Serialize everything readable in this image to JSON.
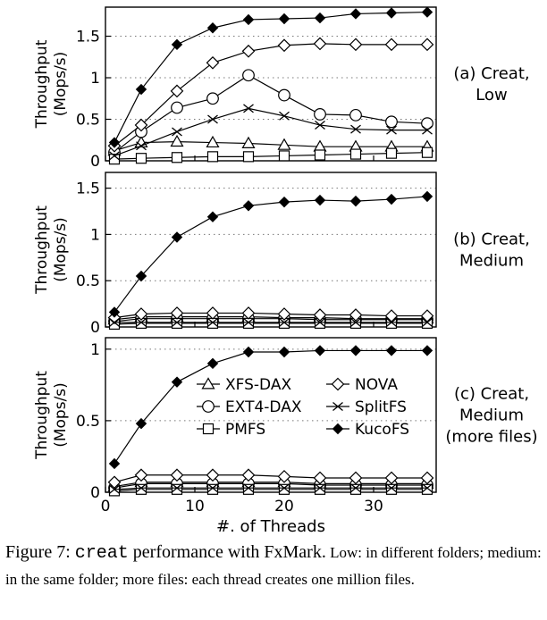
{
  "chart_data": [
    {
      "type": "line",
      "label": "(a) Creat,\nLow",
      "ylabel": "Throughput\n(Mops/s)",
      "xlabel": "",
      "xlim": [
        0,
        37
      ],
      "ylim": [
        0,
        1.85
      ],
      "xticks": [
        0,
        10,
        20,
        30
      ],
      "xtick_labels": [
        "",
        "",
        "",
        ""
      ],
      "yticks": [
        0,
        0.5,
        1,
        1.5
      ],
      "ytick_labels": [
        "0",
        "0.5",
        "1",
        "1.5"
      ],
      "grid": "horizontal-dotted",
      "x": [
        1,
        4,
        8,
        12,
        16,
        20,
        24,
        28,
        32,
        36
      ],
      "series": [
        {
          "name": "XFS-DAX",
          "marker": "triangle",
          "values": [
            0.12,
            0.22,
            0.23,
            0.22,
            0.21,
            0.19,
            0.17,
            0.17,
            0.17,
            0.17
          ]
        },
        {
          "name": "EXT4-DAX",
          "marker": "circle",
          "values": [
            0.1,
            0.35,
            0.64,
            0.75,
            1.03,
            0.79,
            0.56,
            0.55,
            0.47,
            0.45
          ]
        },
        {
          "name": "PMFS",
          "marker": "square",
          "values": [
            0.02,
            0.03,
            0.04,
            0.05,
            0.05,
            0.06,
            0.07,
            0.08,
            0.09,
            0.1
          ]
        },
        {
          "name": "NOVA",
          "marker": "diamond-open",
          "values": [
            0.18,
            0.43,
            0.84,
            1.18,
            1.32,
            1.39,
            1.41,
            1.4,
            1.4,
            1.4
          ]
        },
        {
          "name": "SplitFS",
          "marker": "x",
          "values": [
            0.06,
            0.18,
            0.35,
            0.5,
            0.63,
            0.54,
            0.43,
            0.38,
            0.37,
            0.37
          ]
        },
        {
          "name": "KucoFS",
          "marker": "diamond-filled",
          "values": [
            0.22,
            0.86,
            1.4,
            1.6,
            1.7,
            1.71,
            1.72,
            1.77,
            1.78,
            1.79
          ]
        }
      ]
    },
    {
      "type": "line",
      "label": "(b) Creat,\nMedium",
      "ylabel": "Throughput\n(Mops/s)",
      "xlabel": "",
      "xlim": [
        0,
        37
      ],
      "ylim": [
        0,
        1.67
      ],
      "xticks": [
        0,
        10,
        20,
        30
      ],
      "xtick_labels": [
        "",
        "",
        "",
        ""
      ],
      "yticks": [
        0,
        0.5,
        1,
        1.5
      ],
      "ytick_labels": [
        "0",
        "0.5",
        "1",
        "1.5"
      ],
      "grid": "horizontal-dotted",
      "x": [
        1,
        4,
        8,
        12,
        16,
        20,
        24,
        28,
        32,
        36
      ],
      "series": [
        {
          "name": "XFS-DAX",
          "marker": "triangle",
          "values": [
            0.08,
            0.11,
            0.11,
            0.11,
            0.11,
            0.1,
            0.1,
            0.09,
            0.09,
            0.09
          ]
        },
        {
          "name": "EXT4-DAX",
          "marker": "circle",
          "values": [
            0.06,
            0.09,
            0.09,
            0.09,
            0.09,
            0.09,
            0.08,
            0.08,
            0.08,
            0.08
          ]
        },
        {
          "name": "PMFS",
          "marker": "square",
          "values": [
            0.03,
            0.04,
            0.04,
            0.04,
            0.04,
            0.04,
            0.04,
            0.04,
            0.04,
            0.04
          ]
        },
        {
          "name": "NOVA",
          "marker": "diamond-open",
          "values": [
            0.1,
            0.14,
            0.15,
            0.15,
            0.15,
            0.14,
            0.13,
            0.13,
            0.12,
            0.12
          ]
        },
        {
          "name": "SplitFS",
          "marker": "x",
          "values": [
            0.05,
            0.05,
            0.05,
            0.05,
            0.05,
            0.05,
            0.05,
            0.05,
            0.05,
            0.05
          ]
        },
        {
          "name": "KucoFS",
          "marker": "diamond-filled",
          "values": [
            0.16,
            0.55,
            0.97,
            1.19,
            1.31,
            1.35,
            1.37,
            1.36,
            1.38,
            1.41
          ]
        }
      ]
    },
    {
      "type": "line",
      "label": "(c) Creat,\nMedium\n(more files)",
      "ylabel": "Throughput\n(Mops/s)",
      "xlabel": "#. of Threads",
      "xlim": [
        0,
        37
      ],
      "ylim": [
        0,
        1.08
      ],
      "xticks": [
        0,
        10,
        20,
        30
      ],
      "xtick_labels": [
        "0",
        "10",
        "20",
        "30"
      ],
      "yticks": [
        0,
        0.5,
        1
      ],
      "ytick_labels": [
        "0",
        "0.5",
        "1"
      ],
      "grid": "horizontal-dotted",
      "legend": "top-center",
      "x": [
        1,
        4,
        8,
        12,
        16,
        20,
        24,
        28,
        32,
        36
      ],
      "series": [
        {
          "name": "XFS-DAX",
          "marker": "triangle",
          "values": [
            0.04,
            0.07,
            0.07,
            0.07,
            0.07,
            0.07,
            0.06,
            0.06,
            0.06,
            0.06
          ]
        },
        {
          "name": "EXT4-DAX",
          "marker": "circle",
          "values": [
            0.03,
            0.06,
            0.06,
            0.06,
            0.06,
            0.06,
            0.05,
            0.05,
            0.05,
            0.05
          ]
        },
        {
          "name": "PMFS",
          "marker": "square",
          "values": [
            0.01,
            0.02,
            0.02,
            0.02,
            0.02,
            0.02,
            0.02,
            0.02,
            0.02,
            0.02
          ]
        },
        {
          "name": "NOVA",
          "marker": "diamond-open",
          "values": [
            0.07,
            0.12,
            0.12,
            0.12,
            0.12,
            0.11,
            0.1,
            0.1,
            0.1,
            0.1
          ]
        },
        {
          "name": "SplitFS",
          "marker": "x",
          "values": [
            0.02,
            0.03,
            0.03,
            0.03,
            0.03,
            0.03,
            0.03,
            0.03,
            0.03,
            0.03
          ]
        },
        {
          "name": "KucoFS",
          "marker": "diamond-filled",
          "values": [
            0.2,
            0.48,
            0.77,
            0.9,
            0.98,
            0.98,
            0.99,
            0.99,
            0.99,
            0.99
          ]
        }
      ]
    }
  ],
  "caption": {
    "prefix": "Figure 7: ",
    "code": "creat",
    "main": " performance with FxMark.",
    "detail": " Low: in different folders; medium: in the same folder; more files: each thread creates one million files."
  }
}
